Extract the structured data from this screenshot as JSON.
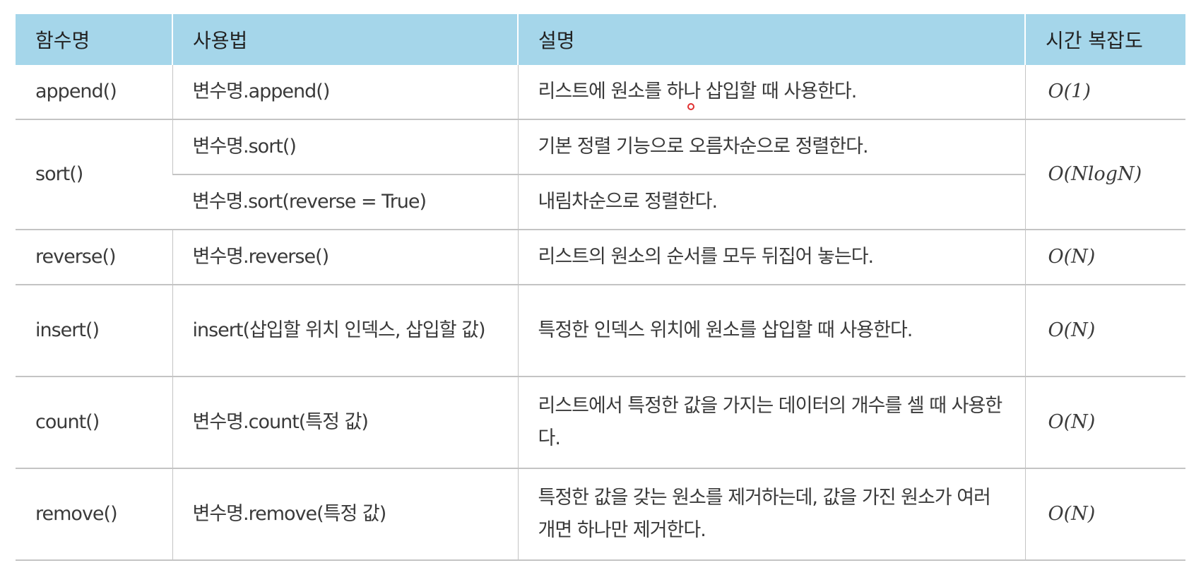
{
  "headers": [
    "함수명",
    "사용법",
    "설명",
    "시간 복잡도"
  ],
  "rows": [
    {
      "name": "append()",
      "usage": "변수명.append()",
      "desc": "리스트에 원소를 하나 삽입할 때 사용한다.",
      "complexity": "O(1)"
    },
    {
      "name": "sort()",
      "usage": "변수명.sort()",
      "desc": "기본 정렬 기능으로 오름차순으로 정렬한다.",
      "complexity": "O(NlogN)",
      "usage2": "변수명.sort(reverse = True)",
      "desc2": "내림차순으로 정렬한다."
    },
    {
      "name": "reverse()",
      "usage": "변수명.reverse()",
      "desc": "리스트의 원소의 순서를 모두 뒤집어 놓는다.",
      "complexity": "O(N)"
    },
    {
      "name": "insert()",
      "usage": "insert(삽입할 위치 인덱스, 삽입할 값)",
      "desc": "특정한 인덱스 위치에 원소를 삽입할 때 사용한다.",
      "complexity": "O(N)"
    },
    {
      "name": "count()",
      "usage": "변수명.count(특정 값)",
      "desc": "리스트에서 특정한 값을 가지는 데이터의 개수를 셀 때 사용한다.",
      "complexity": "O(N)"
    },
    {
      "name": "remove()",
      "usage": "변수명.remove(특정 값)",
      "desc": "특정한 값을 갖는 원소를 제거하는데, 값을 가진 원소가 여러 개면 하나만 제거한다.",
      "complexity": "O(N)"
    }
  ],
  "colors": {
    "header_bg": "#a5d6ea",
    "cursor": "#e03030"
  }
}
